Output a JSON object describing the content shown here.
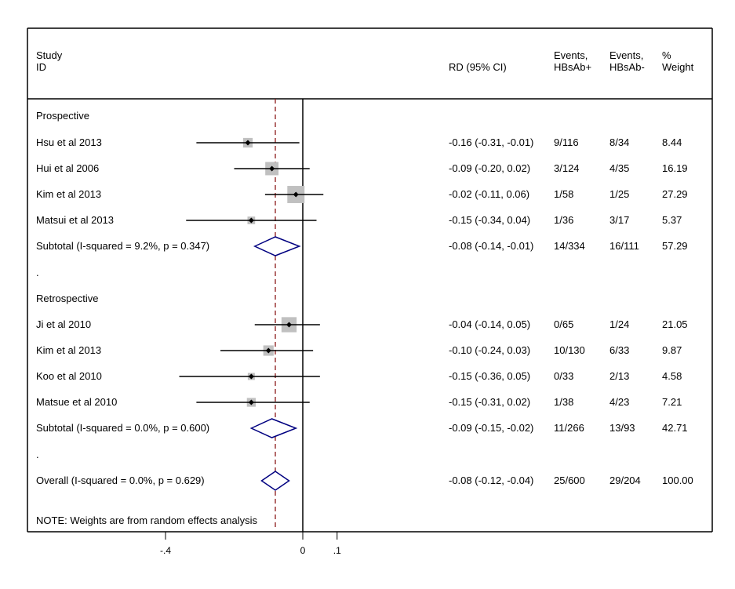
{
  "header": {
    "study_line1": "Study",
    "study_line2": "ID",
    "rd": "RD (95% CI)",
    "ev1_line1": "Events,",
    "ev1_line2": "HBsAb+",
    "ev2_line1": "Events,",
    "ev2_line2": "HBsAb-",
    "wt_line1": "%",
    "wt_line2": "Weight"
  },
  "note": "NOTE: Weights are from random effects analysis",
  "colors": {
    "line": "#000000",
    "box": "#c0c0c0",
    "diamond": "#000080",
    "ref_line": "#8b1a1a"
  },
  "chart_data": {
    "type": "forest",
    "overall_estimate": -0.08,
    "null_line": 0,
    "x_ticks": [
      {
        "value": -0.4,
        "label": "-.4"
      },
      {
        "value": 0,
        "label": "0"
      },
      {
        "value": 0.1,
        "label": ".1"
      }
    ],
    "rows": [
      {
        "kind": "group",
        "label": "Prospective"
      },
      {
        "kind": "study",
        "label": "Hsu et al 2013",
        "est": -0.16,
        "lo": -0.31,
        "hi": -0.01,
        "rd": "-0.16 (-0.31, -0.01)",
        "ev1": "9/116",
        "ev2": "8/34",
        "weight": "8.44"
      },
      {
        "kind": "study",
        "label": "Hui et al 2006",
        "est": -0.09,
        "lo": -0.2,
        "hi": 0.02,
        "rd": "-0.09 (-0.20, 0.02)",
        "ev1": "3/124",
        "ev2": "4/35",
        "weight": "16.19"
      },
      {
        "kind": "study",
        "label": "Kim et al 2013",
        "est": -0.02,
        "lo": -0.11,
        "hi": 0.06,
        "rd": "-0.02 (-0.11, 0.06)",
        "ev1": "1/58",
        "ev2": "1/25",
        "weight": "27.29"
      },
      {
        "kind": "study",
        "label": "Matsui et al 2013",
        "est": -0.15,
        "lo": -0.34,
        "hi": 0.04,
        "rd": "-0.15 (-0.34, 0.04)",
        "ev1": "1/36",
        "ev2": "3/17",
        "weight": "5.37"
      },
      {
        "kind": "subtotal",
        "label": "Subtotal  (I-squared = 9.2%, p = 0.347)",
        "est": -0.08,
        "lo": -0.14,
        "hi": -0.01,
        "rd": "-0.08 (-0.14, -0.01)",
        "ev1": "14/334",
        "ev2": "16/111",
        "weight": "57.29"
      },
      {
        "kind": "spacer",
        "label": "."
      },
      {
        "kind": "group",
        "label": "Retrospective"
      },
      {
        "kind": "study",
        "label": "Ji et al 2010",
        "est": -0.04,
        "lo": -0.14,
        "hi": 0.05,
        "rd": "-0.04 (-0.14, 0.05)",
        "ev1": "0/65",
        "ev2": "1/24",
        "weight": "21.05"
      },
      {
        "kind": "study",
        "label": "Kim et al 2013",
        "est": -0.1,
        "lo": -0.24,
        "hi": 0.03,
        "rd": "-0.10 (-0.24, 0.03)",
        "ev1": "10/130",
        "ev2": "6/33",
        "weight": "9.87"
      },
      {
        "kind": "study",
        "label": "Koo et al 2010",
        "est": -0.15,
        "lo": -0.36,
        "hi": 0.05,
        "rd": "-0.15 (-0.36, 0.05)",
        "ev1": "0/33",
        "ev2": "2/13",
        "weight": "4.58"
      },
      {
        "kind": "study",
        "label": "Matsue et al 2010",
        "est": -0.15,
        "lo": -0.31,
        "hi": 0.02,
        "rd": "-0.15 (-0.31, 0.02)",
        "ev1": "1/38",
        "ev2": "4/23",
        "weight": "7.21"
      },
      {
        "kind": "subtotal",
        "label": "Subtotal  (I-squared = 0.0%, p = 0.600)",
        "est": -0.09,
        "lo": -0.15,
        "hi": -0.02,
        "rd": "-0.09 (-0.15, -0.02)",
        "ev1": "11/266",
        "ev2": "13/93",
        "weight": "42.71"
      },
      {
        "kind": "spacer",
        "label": "."
      },
      {
        "kind": "overall",
        "label": "Overall  (I-squared = 0.0%, p = 0.629)",
        "est": -0.08,
        "lo": -0.12,
        "hi": -0.04,
        "rd": "-0.08 (-0.12, -0.04)",
        "ev1": "25/600",
        "ev2": "29/204",
        "weight": "100.00"
      }
    ]
  }
}
